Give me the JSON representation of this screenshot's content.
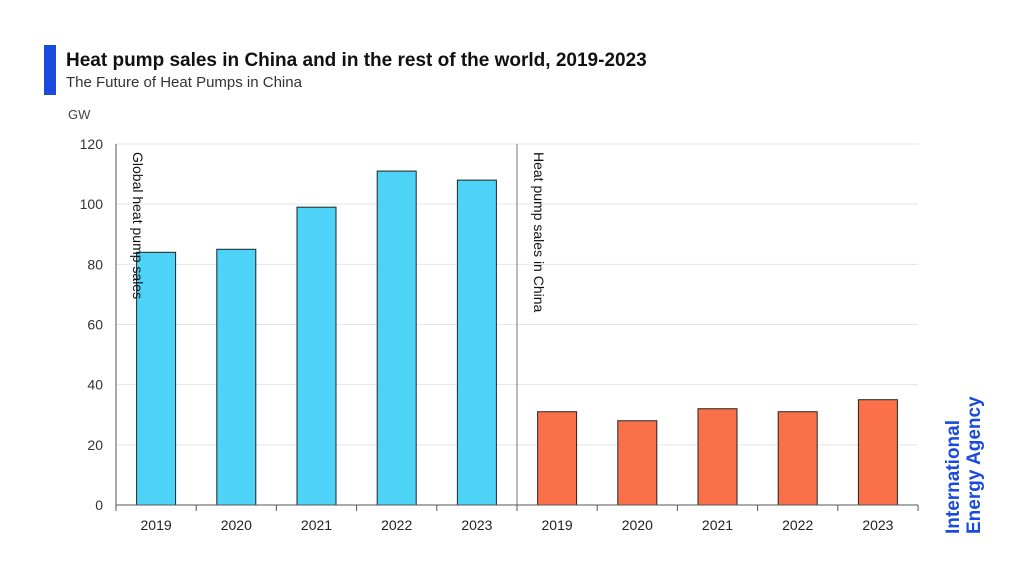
{
  "header": {
    "title": "Heat pump sales in China and in the rest of the world, 2019-2023",
    "subtitle": "The Future of Heat Pumps in China",
    "unit": "GW"
  },
  "colors": {
    "accent": "#1a4bdc",
    "global_bar": "#4cd3f7",
    "china_bar": "#fa7149",
    "logo": "#1a4bdc",
    "grid": "#e5e5e5",
    "axis": "#555555"
  },
  "logo": {
    "line1": "International",
    "line2": "Energy Agency"
  },
  "chart_data": {
    "type": "bar",
    "ylim": [
      0,
      120
    ],
    "yticks": [
      0,
      20,
      40,
      60,
      80,
      100,
      120
    ],
    "grid": true,
    "groups": [
      {
        "name": "Global heat pump sales",
        "categories": [
          "2019",
          "2020",
          "2021",
          "2022",
          "2023"
        ],
        "values": [
          84,
          85,
          99,
          111,
          108
        ]
      },
      {
        "name": "Heat pump sales in China",
        "categories": [
          "2019",
          "2020",
          "2021",
          "2022",
          "2023"
        ],
        "values": [
          31,
          28,
          32,
          31,
          35
        ]
      }
    ]
  }
}
